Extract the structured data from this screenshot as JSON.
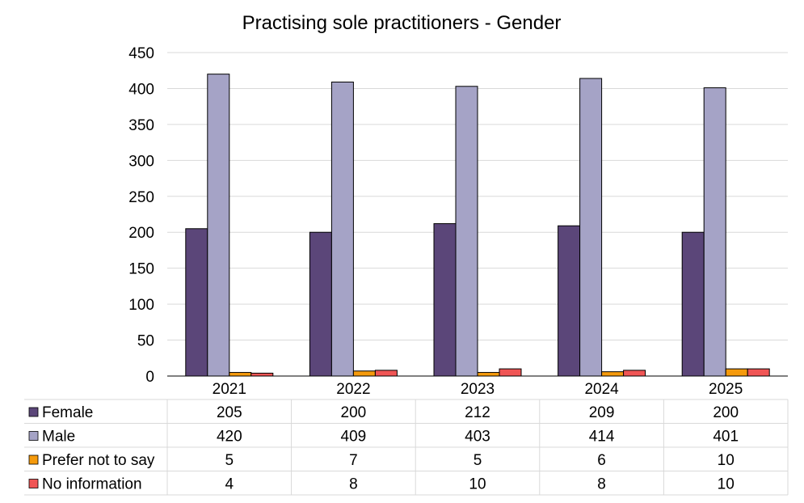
{
  "chart_data": {
    "type": "bar",
    "title": "Practising sole practitioners - Gender",
    "categories": [
      "2021",
      "2022",
      "2023",
      "2024",
      "2025"
    ],
    "series": [
      {
        "name": "Female",
        "values": [
          205,
          200,
          212,
          209,
          200
        ],
        "color": "#5b4679"
      },
      {
        "name": "Male",
        "values": [
          420,
          409,
          403,
          414,
          401
        ],
        "color": "#a5a3c6"
      },
      {
        "name": "Prefer not to say",
        "values": [
          5,
          7,
          5,
          6,
          10
        ],
        "color": "#f59a0c"
      },
      {
        "name": "No information",
        "values": [
          4,
          8,
          10,
          8,
          10
        ],
        "color": "#f05555"
      }
    ],
    "ylim": [
      0,
      450
    ],
    "yticks": [
      0,
      50,
      100,
      150,
      200,
      250,
      300,
      350,
      400,
      450
    ],
    "grid": true,
    "legend": "data-table-below"
  }
}
